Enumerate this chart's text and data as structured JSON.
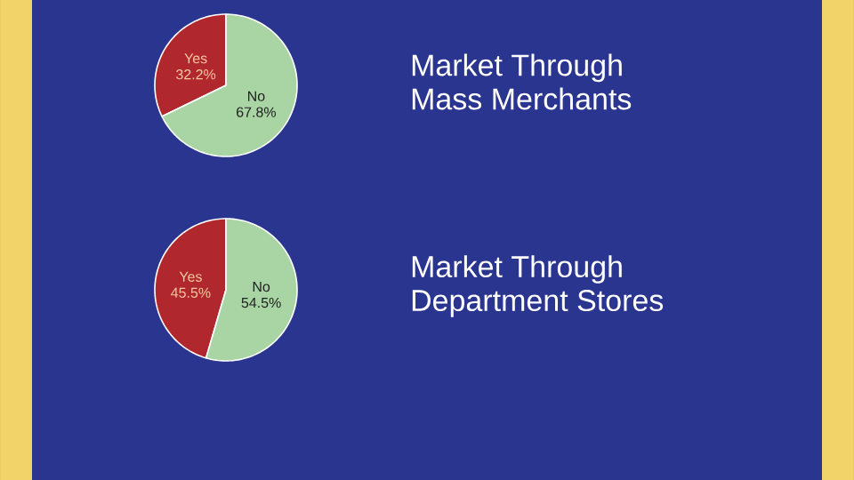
{
  "chart_data": [
    {
      "type": "pie",
      "title": "Market Through Mass Merchants",
      "categories": [
        "Yes",
        "No"
      ],
      "values": [
        32.2,
        67.8
      ],
      "colors": [
        "#b0282e",
        "#a9d4a4"
      ],
      "value_labels": [
        "32.2%",
        "67.8%"
      ]
    },
    {
      "type": "pie",
      "title": "Market Through Department Stores",
      "categories": [
        "Yes",
        "No"
      ],
      "values": [
        45.5,
        54.5
      ],
      "colors": [
        "#b0282e",
        "#a9d4a4"
      ],
      "value_labels": [
        "45.5%",
        "54.5%"
      ]
    }
  ]
}
